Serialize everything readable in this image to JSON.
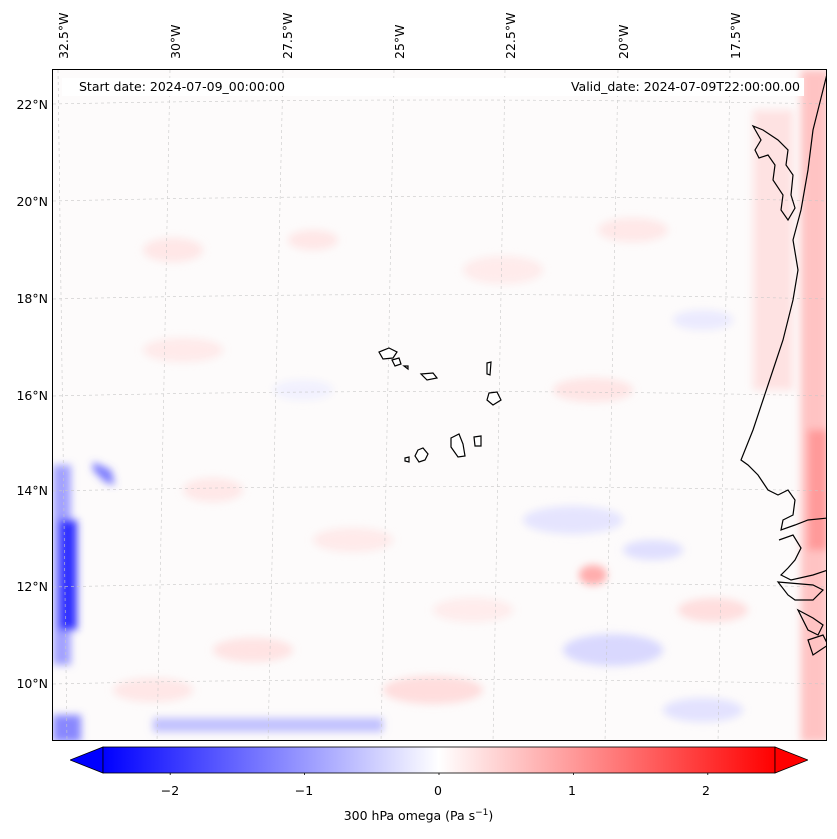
{
  "header": {
    "start_date": "Start date: 2024-07-09_00:00:00",
    "valid_date": "Valid_date: 2024-07-09T22:00:00.00"
  },
  "map": {
    "variable": "300 hPa omega",
    "region": "Cape Verde / West Africa coast",
    "lon_labels": [
      "32.5°W",
      "30°W",
      "27.5°W",
      "25°W",
      "22.5°W",
      "20°W",
      "17.5°W"
    ],
    "lat_labels": [
      "22°N",
      "20°N",
      "18°N",
      "16°N",
      "14°N",
      "12°N",
      "10°N"
    ],
    "lon_range": [
      -33,
      -15.7
    ],
    "lat_range": [
      8.9,
      22.8
    ],
    "gridlines": true
  },
  "colorbar": {
    "title_prefix": "300 hPa omega (Pa s",
    "title_exp": "−1",
    "title_suffix": ")",
    "ticks": [
      "−2",
      "−1",
      "0",
      "1",
      "2"
    ],
    "tick_values": [
      -2,
      -1,
      0,
      1,
      2
    ],
    "range": [
      -2.5,
      2.5
    ],
    "extend": "both",
    "cmap": "bwr",
    "colors": {
      "min": "#0000ff",
      "mid": "#ffffff",
      "max": "#ff0000"
    }
  }
}
